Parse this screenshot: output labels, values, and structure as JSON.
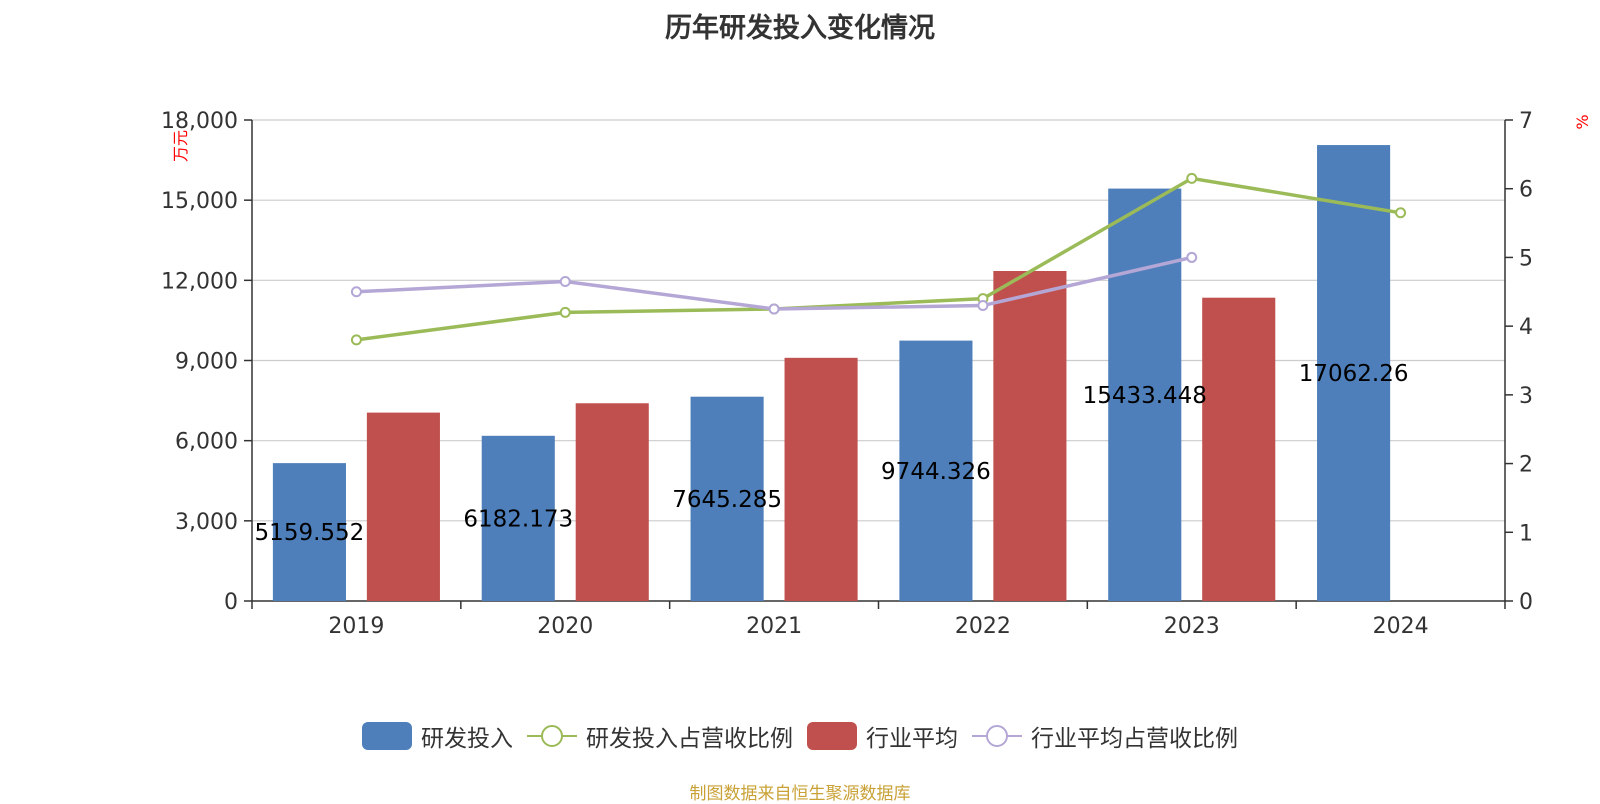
{
  "title": "历年研发投入变化情况",
  "footer": "制图数据来自恒生聚源数据库",
  "legend": [
    {
      "label": "研发投入",
      "kind": "bar",
      "color": "#4e7fbb"
    },
    {
      "label": "研发投入占营收比例",
      "kind": "line",
      "color": "#9bbb59"
    },
    {
      "label": "行业平均",
      "kind": "bar",
      "color": "#c0504d"
    },
    {
      "label": "行业平均占营收比例",
      "kind": "line",
      "color": "#b4a7d6"
    }
  ],
  "chart_data": {
    "type": "bar",
    "categories": [
      "2019",
      "2020",
      "2021",
      "2022",
      "2023",
      "2024"
    ],
    "left_axis": {
      "unit": "万元",
      "ylim": [
        0,
        18000
      ],
      "ticks": [
        0,
        3000,
        6000,
        9000,
        12000,
        15000,
        18000
      ],
      "tick_labels": [
        "0",
        "3,000",
        "6,000",
        "9,000",
        "12,000",
        "15,000",
        "18,000"
      ]
    },
    "right_axis": {
      "unit": "%",
      "ylim": [
        0,
        7
      ],
      "ticks": [
        0,
        1,
        2,
        3,
        4,
        5,
        6,
        7
      ],
      "tick_labels": [
        "0",
        "1",
        "2",
        "3",
        "4",
        "5",
        "6",
        "7"
      ]
    },
    "grid": true,
    "legend_position": "bottom",
    "series": [
      {
        "name": "研发投入",
        "type": "bar",
        "axis": "left",
        "color": "#4e7fbb",
        "values": [
          5159.552,
          6182.173,
          7645.285,
          9744.326,
          15433.448,
          17062.26
        ],
        "data_labels": [
          "5159.552",
          "6182.173",
          "7645.285",
          "9744.326",
          "15433.448",
          "17062.26"
        ]
      },
      {
        "name": "行业平均",
        "type": "bar",
        "axis": "left",
        "color": "#c0504d",
        "values": [
          7050,
          7400,
          9100,
          12350,
          11350,
          null
        ]
      },
      {
        "name": "研发投入占营收比例",
        "type": "line",
        "axis": "right",
        "color": "#9bbb59",
        "values": [
          3.8,
          4.2,
          4.25,
          4.4,
          6.15,
          5.65
        ]
      },
      {
        "name": "行业平均占营收比例",
        "type": "line",
        "axis": "right",
        "color": "#b4a7d6",
        "values": [
          4.5,
          4.65,
          4.25,
          4.3,
          5.0,
          null
        ]
      }
    ]
  }
}
